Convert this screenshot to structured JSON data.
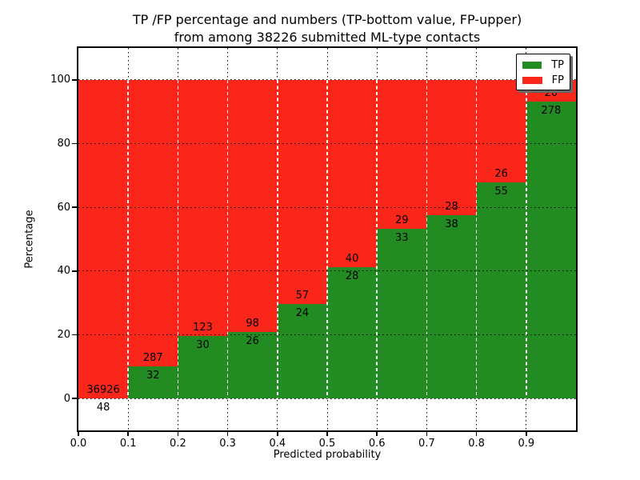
{
  "figure": {
    "title_line1": "TP /FP percentage and numbers (TP-bottom value, FP-upper)",
    "title_line2": "from among 38226 submitted ML-type contacts"
  },
  "chart_data": {
    "type": "bar",
    "stacked": true,
    "normalized_to_percent": true,
    "title": "TP /FP percentage and numbers (TP-bottom value, FP-upper) from among 38226 submitted ML-type contacts",
    "xlabel": "Predicted probability",
    "ylabel": "Percentage",
    "total_contacts": 38226,
    "xlim": [
      0.0,
      1.0
    ],
    "ylim": [
      -10,
      110
    ],
    "x_ticks": [
      "0.0",
      "0.1",
      "0.2",
      "0.3",
      "0.4",
      "0.5",
      "0.6",
      "0.7",
      "0.8",
      "0.9"
    ],
    "y_ticks": [
      0,
      20,
      40,
      60,
      80,
      100
    ],
    "grid": "dotted",
    "legend_position": "upper right",
    "categories": [
      "0.0-0.1",
      "0.1-0.2",
      "0.2-0.3",
      "0.3-0.4",
      "0.4-0.5",
      "0.5-0.6",
      "0.6-0.7",
      "0.7-0.8",
      "0.8-0.9",
      "0.9-1.0"
    ],
    "series": [
      {
        "name": "TP",
        "position": "bottom",
        "color": "#228b22",
        "values": [
          48,
          32,
          30,
          26,
          24,
          28,
          33,
          38,
          55,
          278
        ]
      },
      {
        "name": "FP",
        "position": "top",
        "color": "#fa2619",
        "values": [
          36926,
          287,
          123,
          98,
          57,
          40,
          29,
          28,
          26,
          20
        ]
      }
    ],
    "tp_percent_of_bin": [
      0.13,
      10.03,
      19.61,
      20.97,
      29.63,
      41.18,
      53.23,
      57.58,
      67.9,
      93.29
    ]
  },
  "legend": {
    "items": [
      {
        "label": "TP",
        "color": "#228b22"
      },
      {
        "label": "FP",
        "color": "#fa2619"
      }
    ]
  }
}
